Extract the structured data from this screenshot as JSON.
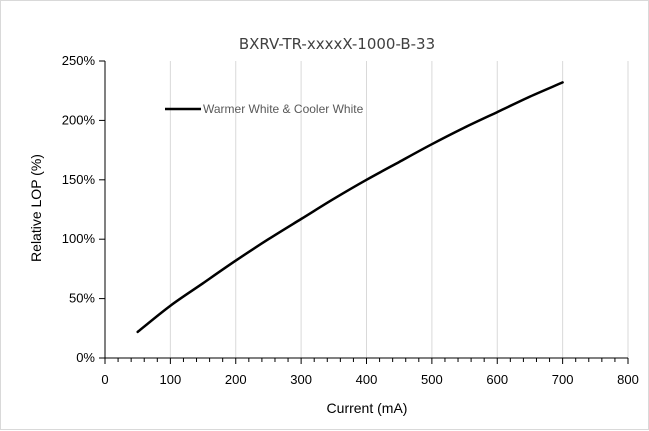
{
  "chart_data": {
    "type": "line",
    "title": "BXRV-TR-xxxxX-1000-B-33",
    "xlabel": "Current (mA)",
    "ylabel": "Relative LOP (%)",
    "xlim": [
      0,
      800
    ],
    "ylim": [
      0,
      250
    ],
    "x_ticks": [
      "0",
      "100",
      "200",
      "300",
      "400",
      "500",
      "600",
      "700",
      "800"
    ],
    "y_ticks": [
      "0%",
      "50%",
      "100%",
      "150%",
      "200%",
      "250%"
    ],
    "grid": "vertical",
    "legend_position": "top-left",
    "series": [
      {
        "name": "Warmer White & Cooler White",
        "color": "#000000",
        "x": [
          50,
          100,
          150,
          200,
          250,
          300,
          350,
          400,
          450,
          500,
          550,
          600,
          650,
          700
        ],
        "y": [
          22,
          44,
          63,
          82,
          100,
          117,
          134,
          150,
          165,
          180,
          194,
          207,
          220,
          232
        ]
      }
    ]
  }
}
